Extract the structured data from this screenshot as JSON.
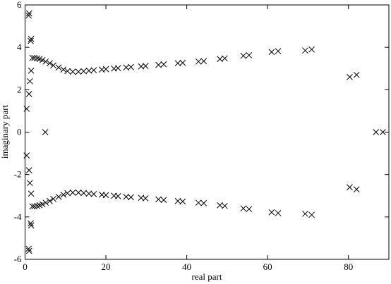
{
  "chart_data": {
    "type": "scatter",
    "xlabel": "real part",
    "ylabel": "imaginary part",
    "xlim": [
      0,
      90
    ],
    "ylim": [
      -6,
      6
    ],
    "xticks": [
      0,
      20,
      40,
      60,
      80
    ],
    "yticks": [
      -6,
      -4,
      -2,
      0,
      2,
      4,
      6
    ],
    "color": "#000000",
    "marker": "x",
    "x": [
      1.0,
      0.9,
      1.5,
      1.4,
      1.5,
      1.2,
      1.0,
      0.4,
      1.0,
      0.9,
      1.5,
      1.4,
      1.5,
      1.2,
      1.0,
      0.4,
      1.8,
      2.3,
      3.0,
      3.6,
      4.3,
      5.1,
      6.1,
      7.0,
      8.3,
      9.5,
      10.5,
      11.8,
      13.2,
      14.5,
      15.8,
      17.0,
      19.0,
      20.0,
      22.0,
      23.0,
      25.0,
      26.2,
      28.7,
      29.8,
      33.0,
      34.3,
      37.8,
      39.0,
      42.9,
      44.2,
      48.2,
      49.4,
      54.0,
      55.4,
      61.0,
      62.6,
      69.3,
      70.9,
      1.8,
      2.3,
      3.0,
      3.6,
      4.3,
      5.1,
      6.1,
      7.0,
      8.3,
      9.5,
      10.5,
      11.8,
      13.2,
      14.5,
      15.8,
      17.0,
      19.0,
      20.0,
      22.0,
      23.0,
      25.0,
      26.2,
      28.7,
      29.8,
      33.0,
      34.3,
      37.8,
      39.0,
      42.9,
      44.2,
      48.2,
      49.4,
      54.0,
      55.4,
      61.0,
      62.6,
      69.3,
      70.9,
      80.3,
      82.0,
      80.3,
      82.0,
      86.8,
      88.5,
      5.0
    ],
    "y": [
      5.6,
      5.5,
      4.4,
      4.3,
      2.9,
      2.4,
      1.8,
      1.1,
      -5.6,
      -5.5,
      -4.4,
      -4.3,
      -2.9,
      -2.4,
      -1.8,
      -1.1,
      3.5,
      3.5,
      3.48,
      3.45,
      3.4,
      3.33,
      3.25,
      3.15,
      3.05,
      2.95,
      2.88,
      2.85,
      2.85,
      2.87,
      2.9,
      2.92,
      2.95,
      2.97,
      3.0,
      3.02,
      3.05,
      3.07,
      3.1,
      3.12,
      3.17,
      3.2,
      3.25,
      3.27,
      3.33,
      3.35,
      3.45,
      3.48,
      3.6,
      3.63,
      3.78,
      3.82,
      3.85,
      3.9,
      -3.5,
      -3.5,
      -3.48,
      -3.45,
      -3.4,
      -3.33,
      -3.25,
      -3.15,
      -3.05,
      -2.95,
      -2.88,
      -2.85,
      -2.85,
      -2.87,
      -2.9,
      -2.92,
      -2.95,
      -2.97,
      -3.0,
      -3.02,
      -3.05,
      -3.07,
      -3.1,
      -3.12,
      -3.17,
      -3.2,
      -3.25,
      -3.27,
      -3.33,
      -3.35,
      -3.45,
      -3.48,
      -3.6,
      -3.63,
      -3.78,
      -3.82,
      -3.85,
      -3.9,
      2.6,
      2.7,
      -2.6,
      -2.7,
      0,
      0,
      0
    ]
  }
}
